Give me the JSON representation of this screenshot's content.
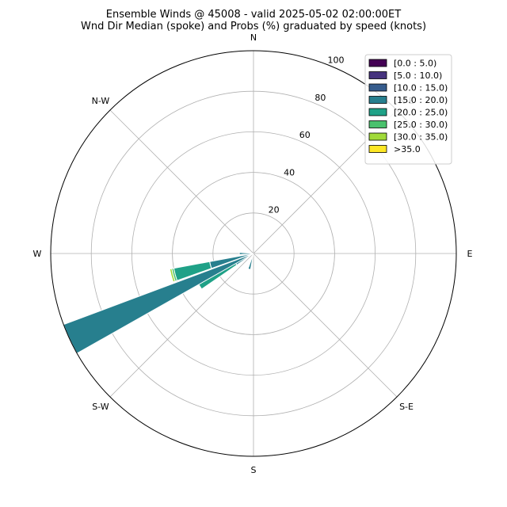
{
  "chart_data": {
    "type": "windrose",
    "title": "Ensemble Winds @ 45008 - valid 2025-05-02 02:00:00ET",
    "subtitle": "Wnd Dir Median (spoke) and Probs (%) graduated by speed (knots)",
    "direction_labels": [
      "N",
      "N-W",
      "W",
      "S-W",
      "S",
      "S-E",
      "E",
      "N-E"
    ],
    "radial_ticks": [
      20,
      40,
      60,
      80,
      100
    ],
    "rmax": 100,
    "grid": true,
    "legend_position": "top-right",
    "speed_bins": [
      {
        "label": "[0.0 : 5.0)",
        "color": "#440154"
      },
      {
        "label": "[5.0 : 10.0)",
        "color": "#46337e"
      },
      {
        "label": "[10.0 : 15.0)",
        "color": "#365c8d"
      },
      {
        "label": "[15.0 : 20.0)",
        "color": "#277f8e"
      },
      {
        "label": "[20.0 : 25.0)",
        "color": "#1fa187"
      },
      {
        "label": "[25.0 : 30.0)",
        "color": "#4ac16d"
      },
      {
        "label": "[30.0 : 35.0)",
        "color": "#a0da39"
      },
      {
        "label": ">35.0",
        "color": "#fde725"
      }
    ],
    "sectors": [
      {
        "direction_deg": 270,
        "segments": [
          {
            "bin": 3,
            "r0": 0,
            "r1": 7
          }
        ]
      },
      {
        "direction_deg": 240,
        "segments": [
          {
            "bin": 3,
            "r0": 0,
            "r1": 10
          },
          {
            "bin": 4,
            "r0": 10,
            "r1": 31
          }
        ]
      },
      {
        "direction_deg": 255,
        "segments": [
          {
            "bin": 3,
            "r0": 0,
            "r1": 22
          },
          {
            "bin": 4,
            "r0": 22,
            "r1": 40
          },
          {
            "bin": 5,
            "r0": 40,
            "r1": 41
          },
          {
            "bin": 6,
            "r0": 41,
            "r1": 42
          }
        ]
      },
      {
        "direction_deg": 245,
        "segments": [
          {
            "bin": 3,
            "r0": 0,
            "r1": 100
          }
        ]
      },
      {
        "direction_deg": 195,
        "segments": [
          {
            "bin": 3,
            "r0": 0,
            "r1": 8
          }
        ]
      }
    ]
  }
}
